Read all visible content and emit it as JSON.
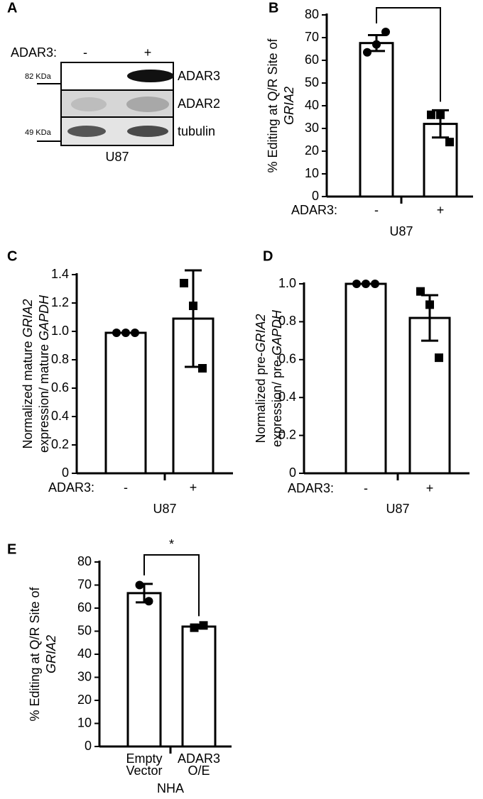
{
  "blot": {
    "panel": "A",
    "treatment_label": "ADAR3:",
    "lanes": [
      "-",
      "+"
    ],
    "markers": [
      "82 KDa",
      "49 KDa"
    ],
    "bands": [
      "ADAR3",
      "ADAR2",
      "tubulin"
    ],
    "cell_line": "U87"
  },
  "chart_data": [
    {
      "type": "bar",
      "panel": "B",
      "ylabel": [
        [
          {
            "text": "% Editing at Q/R Site of",
            "italic": false
          }
        ],
        [
          {
            "text": "GRIA2",
            "italic": true
          }
        ]
      ],
      "group_label": "ADAR3:",
      "categories": [
        "-",
        "+"
      ],
      "xlabel": "U87",
      "values": [
        67.6,
        32
      ],
      "errors": [
        3.5,
        6
      ],
      "points": [
        [
          63.5,
          67,
          72.5
        ],
        [
          36,
          36,
          24
        ]
      ],
      "markers": [
        "circle",
        "square"
      ],
      "ylim": [
        0,
        80
      ],
      "yticks": [
        0,
        10,
        20,
        30,
        40,
        50,
        60,
        70,
        80
      ],
      "bracket": true
    },
    {
      "type": "bar",
      "panel": "C",
      "ylabel": [
        [
          {
            "text": "Normalized mature ",
            "italic": false
          },
          {
            "text": "GRIA2",
            "italic": true
          }
        ],
        [
          {
            "text": "expression/ mature ",
            "italic": false
          },
          {
            "text": "GAPDH",
            "italic": true
          }
        ]
      ],
      "group_label": "ADAR3:",
      "categories": [
        "-",
        "+"
      ],
      "xlabel": "U87",
      "values": [
        0.99,
        1.09
      ],
      "errors": [
        0,
        0.34
      ],
      "points": [
        [
          0.99,
          0.99,
          0.99
        ],
        [
          1.34,
          1.18,
          0.74
        ]
      ],
      "markers": [
        "circle",
        "square"
      ],
      "ylim": [
        0,
        1.4
      ],
      "yticks": [
        0,
        0.2,
        0.4,
        0.6,
        0.8,
        {
          "value": 1,
          "label": "1.0"
        },
        1.2,
        1.4
      ],
      "bracket": false
    },
    {
      "type": "bar",
      "panel": "D",
      "ylabel": [
        [
          {
            "text": "Normalized pre-",
            "italic": false
          },
          {
            "text": "GRIA2",
            "italic": true
          }
        ],
        [
          {
            "text": "expression/ pre-",
            "italic": false
          },
          {
            "text": "GAPDH",
            "italic": true
          }
        ]
      ],
      "group_label": "ADAR3:",
      "categories": [
        "-",
        "+"
      ],
      "xlabel": "U87",
      "values": [
        1,
        0.82
      ],
      "errors": [
        0,
        0.12
      ],
      "points": [
        [
          1,
          1,
          1
        ],
        [
          0.96,
          0.89,
          0.61
        ]
      ],
      "markers": [
        "circle",
        "square"
      ],
      "ylim": [
        0,
        1
      ],
      "yticks": [
        0,
        0.2,
        0.4,
        0.6,
        0.8,
        {
          "value": 1,
          "label": "1.0"
        }
      ],
      "bracket": false
    },
    {
      "type": "bar",
      "panel": "E",
      "ylabel": [
        [
          {
            "text": "% Editing at Q/R Site of",
            "italic": false
          }
        ],
        [
          {
            "text": "GRIA2",
            "italic": true
          }
        ]
      ],
      "categories": [
        [
          "Empty",
          "Vector"
        ],
        [
          "ADAR3",
          "O/E"
        ]
      ],
      "xlabel": "NHA",
      "values": [
        66.5,
        52
      ],
      "errors": [
        4,
        0.8
      ],
      "points": [
        [
          70,
          63
        ],
        [
          51.5,
          52.5
        ]
      ],
      "markers": [
        "circle",
        "square"
      ],
      "ylim": [
        0,
        80
      ],
      "yticks": [
        0,
        10,
        20,
        30,
        40,
        50,
        60,
        70,
        80
      ],
      "bracket": true,
      "significance": "*"
    }
  ]
}
